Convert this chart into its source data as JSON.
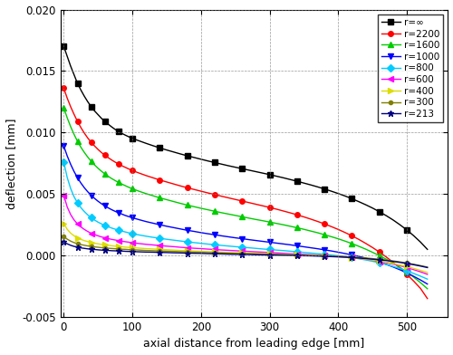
{
  "xlabel": "axial distance from leading edge [mm]",
  "ylabel": "deflection [mm]",
  "xlim": [
    -5,
    560
  ],
  "ylim": [
    -0.005,
    0.02
  ],
  "yticks": [
    -0.005,
    0.0,
    0.005,
    0.01,
    0.015,
    0.02
  ],
  "xticks": [
    0,
    100,
    200,
    300,
    400,
    500
  ],
  "series": [
    {
      "label": "r=∞",
      "color": "#000000",
      "marker": "s",
      "markersize": 4,
      "x": [
        0,
        5,
        10,
        15,
        20,
        25,
        30,
        35,
        40,
        45,
        50,
        55,
        60,
        65,
        70,
        75,
        80,
        85,
        90,
        95,
        100,
        110,
        120,
        130,
        140,
        150,
        160,
        170,
        180,
        190,
        200,
        210,
        220,
        230,
        240,
        250,
        260,
        270,
        280,
        290,
        300,
        310,
        320,
        330,
        340,
        350,
        360,
        370,
        380,
        390,
        400,
        410,
        420,
        430,
        440,
        450,
        460,
        470,
        480,
        490,
        500,
        510,
        520,
        530
      ],
      "y": [
        0.017,
        0.0162,
        0.0154,
        0.0147,
        0.014,
        0.01345,
        0.01295,
        0.0125,
        0.0121,
        0.01175,
        0.01145,
        0.01115,
        0.0109,
        0.01067,
        0.01045,
        0.01025,
        0.01008,
        0.00992,
        0.00978,
        0.00965,
        0.00952,
        0.00932,
        0.00912,
        0.00893,
        0.00875,
        0.00858,
        0.00842,
        0.00826,
        0.00811,
        0.00797,
        0.00783,
        0.00769,
        0.00756,
        0.00743,
        0.0073,
        0.00718,
        0.00706,
        0.00694,
        0.00682,
        0.0067,
        0.00658,
        0.00645,
        0.00632,
        0.00618,
        0.00604,
        0.00589,
        0.00574,
        0.00558,
        0.00541,
        0.00523,
        0.00504,
        0.00484,
        0.00462,
        0.00438,
        0.00413,
        0.00386,
        0.00356,
        0.00324,
        0.00289,
        0.0025,
        0.00208,
        0.00161,
        0.00109,
        0.0005
      ]
    },
    {
      "label": "r=2200",
      "color": "#ff0000",
      "marker": "o",
      "markersize": 4,
      "x": [
        0,
        5,
        10,
        15,
        20,
        25,
        30,
        35,
        40,
        45,
        50,
        55,
        60,
        65,
        70,
        75,
        80,
        85,
        90,
        95,
        100,
        110,
        120,
        130,
        140,
        150,
        160,
        170,
        180,
        190,
        200,
        210,
        220,
        230,
        240,
        250,
        260,
        270,
        280,
        290,
        300,
        310,
        320,
        330,
        340,
        350,
        360,
        370,
        380,
        390,
        400,
        410,
        420,
        430,
        440,
        450,
        460,
        470,
        480,
        490,
        500,
        510,
        520,
        530
      ],
      "y": [
        0.0136,
        0.0128,
        0.0121,
        0.01148,
        0.0109,
        0.0104,
        0.00995,
        0.00955,
        0.0092,
        0.0089,
        0.00862,
        0.00837,
        0.00815,
        0.00795,
        0.00776,
        0.00759,
        0.00744,
        0.00729,
        0.00716,
        0.00703,
        0.00691,
        0.0067,
        0.0065,
        0.00632,
        0.00614,
        0.00598,
        0.00582,
        0.00566,
        0.00551,
        0.00537,
        0.00523,
        0.00509,
        0.00496,
        0.00482,
        0.00469,
        0.00456,
        0.00443,
        0.0043,
        0.00417,
        0.00404,
        0.00391,
        0.00377,
        0.00362,
        0.00347,
        0.00331,
        0.00314,
        0.00296,
        0.00277,
        0.00257,
        0.00235,
        0.00212,
        0.00187,
        0.0016,
        0.00131,
        0.00099,
        0.00065,
        0.00028,
        -0.00012,
        -0.00055,
        -0.00102,
        -0.00153,
        -0.00208,
        -0.00268,
        -0.0035
      ]
    },
    {
      "label": "r=1600",
      "color": "#00cc00",
      "marker": "^",
      "markersize": 4,
      "x": [
        0,
        5,
        10,
        15,
        20,
        25,
        30,
        35,
        40,
        45,
        50,
        55,
        60,
        65,
        70,
        75,
        80,
        85,
        90,
        95,
        100,
        110,
        120,
        130,
        140,
        150,
        160,
        170,
        180,
        190,
        200,
        210,
        220,
        230,
        240,
        250,
        260,
        270,
        280,
        290,
        300,
        310,
        320,
        330,
        340,
        350,
        360,
        370,
        380,
        390,
        400,
        410,
        420,
        430,
        440,
        450,
        460,
        470,
        480,
        490,
        500,
        510,
        520,
        530
      ],
      "y": [
        0.012,
        0.0112,
        0.01048,
        0.00985,
        0.00928,
        0.0088,
        0.00838,
        0.008,
        0.00766,
        0.00736,
        0.00709,
        0.00685,
        0.00663,
        0.00643,
        0.00625,
        0.00609,
        0.00594,
        0.0058,
        0.00567,
        0.00554,
        0.00543,
        0.00522,
        0.00503,
        0.00486,
        0.00469,
        0.00454,
        0.00439,
        0.00424,
        0.0041,
        0.00397,
        0.00384,
        0.00372,
        0.0036,
        0.00348,
        0.00337,
        0.00326,
        0.00315,
        0.00304,
        0.00293,
        0.00283,
        0.00272,
        0.00261,
        0.0025,
        0.00238,
        0.00226,
        0.00213,
        0.00199,
        0.00185,
        0.00169,
        0.00153,
        0.00136,
        0.00117,
        0.00097,
        0.00075,
        0.00052,
        0.00026,
        -1e-05,
        -0.0003,
        -0.00062,
        -0.00097,
        -0.00135,
        -0.00176,
        -0.00221,
        -0.0027
      ]
    },
    {
      "label": "r=1000",
      "color": "#0000ff",
      "marker": "v",
      "markersize": 4,
      "x": [
        0,
        5,
        10,
        15,
        20,
        25,
        30,
        35,
        40,
        45,
        50,
        55,
        60,
        65,
        70,
        75,
        80,
        85,
        90,
        95,
        100,
        110,
        120,
        130,
        140,
        150,
        160,
        170,
        180,
        190,
        200,
        210,
        220,
        230,
        240,
        250,
        260,
        270,
        280,
        290,
        300,
        310,
        320,
        330,
        340,
        350,
        360,
        370,
        380,
        390,
        400,
        410,
        420,
        430,
        440,
        450,
        460,
        470,
        480,
        490,
        500,
        510,
        520,
        530
      ],
      "y": [
        0.0089,
        0.0081,
        0.00742,
        0.00683,
        0.00633,
        0.00589,
        0.00551,
        0.00518,
        0.00489,
        0.00464,
        0.00441,
        0.00421,
        0.00403,
        0.00387,
        0.00372,
        0.00359,
        0.00347,
        0.00336,
        0.00325,
        0.00316,
        0.00307,
        0.00291,
        0.00276,
        0.00263,
        0.0025,
        0.00238,
        0.00227,
        0.00216,
        0.00205,
        0.00196,
        0.00186,
        0.00177,
        0.00169,
        0.0016,
        0.00152,
        0.00144,
        0.00137,
        0.00129,
        0.00122,
        0.00115,
        0.00108,
        0.00101,
        0.00094,
        0.00087,
        0.00079,
        0.00071,
        0.00063,
        0.00055,
        0.00046,
        0.00037,
        0.00027,
        0.00016,
        5e-05,
        -7e-05,
        -0.00021,
        -0.00036,
        -0.00053,
        -0.00072,
        -0.00093,
        -0.00116,
        -0.00141,
        -0.00169,
        -0.00199,
        -0.00232
      ]
    },
    {
      "label": "r=800",
      "color": "#00ccff",
      "marker": "D",
      "markersize": 4,
      "x": [
        0,
        5,
        10,
        15,
        20,
        25,
        30,
        35,
        40,
        45,
        50,
        55,
        60,
        65,
        70,
        75,
        80,
        85,
        90,
        95,
        100,
        110,
        120,
        130,
        140,
        150,
        160,
        170,
        180,
        190,
        200,
        210,
        220,
        230,
        240,
        250,
        260,
        270,
        280,
        290,
        300,
        310,
        320,
        330,
        340,
        350,
        360,
        370,
        380,
        390,
        400,
        410,
        420,
        430,
        440,
        450,
        460,
        470,
        480,
        490,
        500,
        510,
        520,
        530
      ],
      "y": [
        0.0076,
        0.00635,
        0.00545,
        0.00478,
        0.00428,
        0.00389,
        0.00357,
        0.0033,
        0.00307,
        0.00288,
        0.00271,
        0.00257,
        0.00244,
        0.00233,
        0.00223,
        0.00214,
        0.00205,
        0.00198,
        0.00191,
        0.00184,
        0.00178,
        0.00167,
        0.00157,
        0.00148,
        0.0014,
        0.00132,
        0.00125,
        0.00118,
        0.00111,
        0.00105,
        0.00099,
        0.00093,
        0.00088,
        0.00082,
        0.00077,
        0.00072,
        0.00067,
        0.00063,
        0.00058,
        0.00053,
        0.00049,
        0.00044,
        0.0004,
        0.00035,
        0.0003,
        0.00025,
        0.0002,
        0.00015,
        0.0001,
        4e-05,
        -2e-05,
        -9e-05,
        -0.00017,
        -0.00026,
        -0.00036,
        -0.00047,
        -0.00059,
        -0.00073,
        -0.00089,
        -0.00106,
        -0.00125,
        -0.00146,
        -0.00168,
        -0.00192
      ]
    },
    {
      "label": "r=600",
      "color": "#ff00ff",
      "marker": "<",
      "markersize": 4,
      "x": [
        0,
        5,
        10,
        15,
        20,
        25,
        30,
        35,
        40,
        45,
        50,
        55,
        60,
        65,
        70,
        75,
        80,
        85,
        90,
        95,
        100,
        110,
        120,
        130,
        140,
        150,
        160,
        170,
        180,
        190,
        200,
        210,
        220,
        230,
        240,
        250,
        260,
        270,
        280,
        290,
        300,
        310,
        320,
        330,
        340,
        350,
        360,
        370,
        380,
        390,
        400,
        410,
        420,
        430,
        440,
        450,
        460,
        470,
        480,
        490,
        500,
        510,
        520,
        530
      ],
      "y": [
        0.0049,
        0.00395,
        0.00333,
        0.00289,
        0.00257,
        0.00232,
        0.00212,
        0.00195,
        0.00181,
        0.0017,
        0.0016,
        0.00151,
        0.00144,
        0.00137,
        0.00131,
        0.00126,
        0.00121,
        0.00116,
        0.00112,
        0.00108,
        0.00104,
        0.00097,
        0.00091,
        0.00086,
        0.00081,
        0.00076,
        0.00072,
        0.00067,
        0.00063,
        0.00059,
        0.00056,
        0.00052,
        0.00049,
        0.00045,
        0.00042,
        0.00039,
        0.00036,
        0.00033,
        0.0003,
        0.00027,
        0.00024,
        0.00021,
        0.00018,
        0.00015,
        0.00012,
        9e-05,
        6e-05,
        3e-05,
        0.0,
        -4e-05,
        -8e-05,
        -0.00012,
        -0.00017,
        -0.00023,
        -0.0003,
        -0.00038,
        -0.00047,
        -0.00058,
        -0.0007,
        -0.00083,
        -0.00098,
        -0.00115,
        -0.00133,
        -0.00153
      ]
    },
    {
      "label": "r=400",
      "color": "#dddd00",
      "marker": ">",
      "markersize": 4,
      "x": [
        0,
        5,
        10,
        15,
        20,
        25,
        30,
        35,
        40,
        45,
        50,
        55,
        60,
        65,
        70,
        75,
        80,
        85,
        90,
        95,
        100,
        110,
        120,
        130,
        140,
        150,
        160,
        170,
        180,
        190,
        200,
        210,
        220,
        230,
        240,
        250,
        260,
        270,
        280,
        290,
        300,
        310,
        320,
        330,
        340,
        350,
        360,
        370,
        380,
        390,
        400,
        410,
        420,
        430,
        440,
        450,
        460,
        470,
        480,
        490,
        500,
        510,
        520,
        530
      ],
      "y": [
        0.0026,
        0.00213,
        0.00182,
        0.0016,
        0.00144,
        0.00131,
        0.00121,
        0.00113,
        0.00106,
        0.001,
        0.00095,
        0.0009,
        0.00086,
        0.00083,
        0.00079,
        0.00076,
        0.00073,
        0.00071,
        0.00068,
        0.00066,
        0.00064,
        0.0006,
        0.00056,
        0.00053,
        0.0005,
        0.00047,
        0.00044,
        0.00041,
        0.00039,
        0.00036,
        0.00034,
        0.00031,
        0.00029,
        0.00027,
        0.00025,
        0.00023,
        0.00021,
        0.00019,
        0.00017,
        0.00015,
        0.00013,
        0.00011,
        9e-05,
        7e-05,
        5e-05,
        3e-05,
        1e-05,
        -1e-05,
        -4e-05,
        -7e-05,
        -0.0001,
        -0.00014,
        -0.00019,
        -0.00024,
        -0.0003,
        -0.00037,
        -0.00045,
        -0.00054,
        -0.00065,
        -0.00077,
        -0.0009,
        -0.00105,
        -0.00121,
        -0.00138
      ]
    },
    {
      "label": "r=300",
      "color": "#808000",
      "marker": "o",
      "markersize": 3,
      "x": [
        0,
        5,
        10,
        15,
        20,
        25,
        30,
        35,
        40,
        45,
        50,
        55,
        60,
        65,
        70,
        75,
        80,
        85,
        90,
        95,
        100,
        110,
        120,
        130,
        140,
        150,
        160,
        170,
        180,
        190,
        200,
        210,
        220,
        230,
        240,
        250,
        260,
        270,
        280,
        290,
        300,
        310,
        320,
        330,
        340,
        350,
        360,
        370,
        380,
        390,
        400,
        410,
        420,
        430,
        440,
        450,
        460,
        470,
        480,
        490,
        500,
        510,
        520,
        530
      ],
      "y": [
        0.00155,
        0.00133,
        0.00117,
        0.00105,
        0.00096,
        0.00089,
        0.00083,
        0.00078,
        0.00074,
        0.0007,
        0.00067,
        0.00064,
        0.00061,
        0.00059,
        0.00057,
        0.00055,
        0.00053,
        0.00051,
        0.0005,
        0.00048,
        0.00047,
        0.00044,
        0.00041,
        0.00039,
        0.00037,
        0.00035,
        0.00033,
        0.00031,
        0.00029,
        0.00027,
        0.00026,
        0.00024,
        0.00022,
        0.00021,
        0.00019,
        0.00018,
        0.00016,
        0.00015,
        0.00013,
        0.00012,
        0.0001,
        9e-05,
        7e-05,
        6e-05,
        4e-05,
        3e-05,
        1e-05,
        0.0,
        -2e-05,
        -4e-05,
        -6e-05,
        -9e-05,
        -0.00012,
        -0.00016,
        -0.0002,
        -0.00025,
        -0.00031,
        -0.00037,
        -0.00044,
        -0.00052,
        -0.00061,
        -0.00071,
        -0.00082,
        -0.00094
      ]
    },
    {
      "label": "r=213",
      "color": "#000080",
      "marker": "*",
      "markersize": 5,
      "x": [
        0,
        5,
        10,
        15,
        20,
        25,
        30,
        35,
        40,
        45,
        50,
        55,
        60,
        65,
        70,
        75,
        80,
        85,
        90,
        95,
        100,
        110,
        120,
        130,
        140,
        150,
        160,
        170,
        180,
        190,
        200,
        210,
        220,
        230,
        240,
        250,
        260,
        270,
        280,
        290,
        300,
        310,
        320,
        330,
        340,
        350,
        360,
        370,
        380,
        390,
        400,
        410,
        420,
        430,
        440,
        450,
        460,
        470,
        480,
        490,
        500,
        510,
        520,
        530
      ],
      "y": [
        0.0011,
        0.00095,
        0.00083,
        0.00074,
        0.00068,
        0.00062,
        0.00058,
        0.00054,
        0.00051,
        0.00049,
        0.00046,
        0.00044,
        0.00042,
        0.00041,
        0.00039,
        0.00038,
        0.00037,
        0.00036,
        0.00034,
        0.00033,
        0.00032,
        0.0003,
        0.00028,
        0.00027,
        0.00025,
        0.00024,
        0.00022,
        0.00021,
        0.00019,
        0.00018,
        0.00017,
        0.00015,
        0.00014,
        0.00013,
        0.00011,
        0.0001,
        9e-05,
        8e-05,
        6e-05,
        5e-05,
        4e-05,
        3e-05,
        2e-05,
        1e-05,
        -1e-05,
        -2e-05,
        -3e-05,
        -5e-05,
        -7e-05,
        -9e-05,
        -0.00011,
        -0.00014,
        -0.00017,
        -0.00021,
        -0.00025,
        -0.0003,
        -0.00035,
        -0.00041,
        -0.00048,
        -0.00056,
        -0.00065,
        -0.00075,
        -0.00086,
        -0.00098
      ]
    }
  ]
}
